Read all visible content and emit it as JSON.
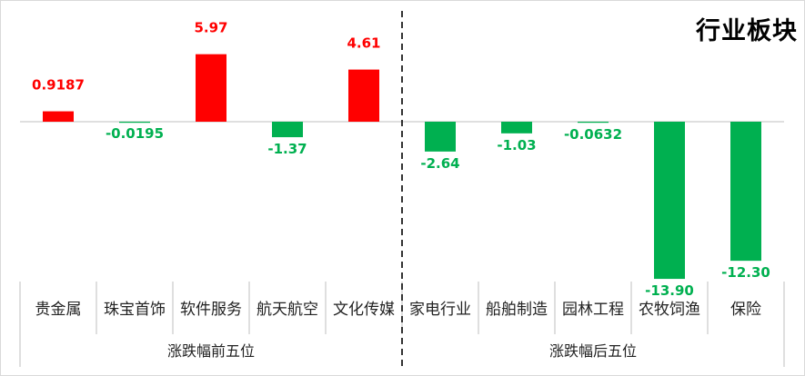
{
  "chart_data": {
    "type": "bar",
    "title": "行业板块",
    "categories": [
      "贵金属",
      "珠宝首饰",
      "软件服务",
      "航天航空",
      "文化传媒",
      "家电行业",
      "船舶制造",
      "园林工程",
      "农牧饲渔",
      "保险"
    ],
    "values": [
      0.9187,
      -0.0195,
      5.97,
      -1.37,
      4.61,
      -2.64,
      -1.03,
      -0.0632,
      -13.9,
      -12.3
    ],
    "value_labels": [
      "0.9187",
      "-0.0195",
      "5.97",
      "-1.37",
      "4.61",
      "-2.64",
      "-1.03",
      "-0.0632",
      "-13.90",
      "-12.30"
    ],
    "groups": [
      {
        "label": "涨跌幅前五位",
        "count": 5
      },
      {
        "label": "涨跌幅后五位",
        "count": 5
      }
    ],
    "ylim": [
      -14,
      7
    ],
    "grid": false,
    "legend": "none",
    "colors": {
      "positive": "#ff0000",
      "negative": "#00b050",
      "axis": "#bfbfbf",
      "divider": "#000000"
    }
  }
}
